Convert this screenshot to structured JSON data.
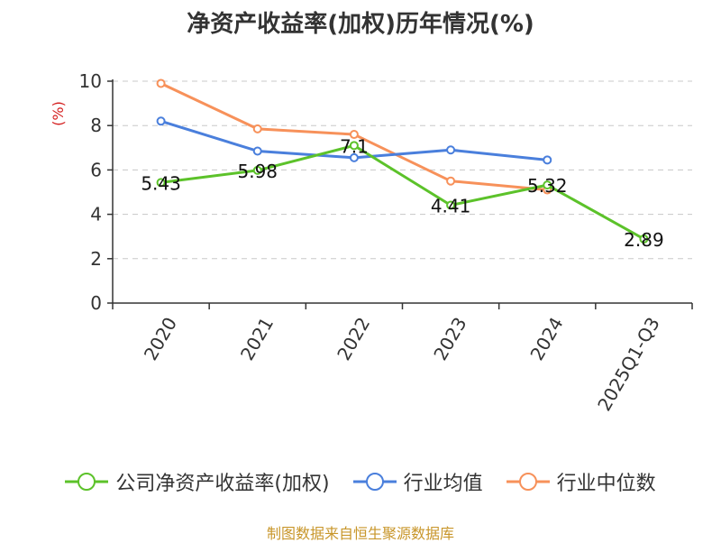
{
  "chart_data": {
    "type": "line",
    "title": "净资产收益率(加权)历年情况(%)",
    "ylabel": "(%)",
    "categories": [
      "2020",
      "2021",
      "2022",
      "2023",
      "2024",
      "2025Q1-Q3"
    ],
    "ylim": [
      0,
      10
    ],
    "yticks": [
      0,
      2,
      4,
      6,
      8,
      10
    ],
    "grid": true,
    "legend_position": "bottom",
    "series": [
      {
        "name": "公司净资产收益率(加权)",
        "color": "#5cc22a",
        "values": [
          5.43,
          5.98,
          7.1,
          4.41,
          5.32,
          2.89
        ],
        "labeled": true
      },
      {
        "name": "行业均值",
        "color": "#4a7fdc",
        "values": [
          8.2,
          6.85,
          6.55,
          6.9,
          6.45,
          null
        ],
        "labeled": false
      },
      {
        "name": "行业中位数",
        "color": "#f7915a",
        "values": [
          9.9,
          7.85,
          7.6,
          5.5,
          5.1,
          null
        ],
        "labeled": false
      }
    ],
    "data_labels": [
      "5.43",
      "5.98",
      "7.1",
      "4.41",
      "5.32",
      "2.89"
    ]
  },
  "source": "制图数据来自恒生聚源数据库",
  "colors": {
    "axis": "#333333",
    "grid": "#c8c8c8",
    "unit": "#d42020"
  }
}
